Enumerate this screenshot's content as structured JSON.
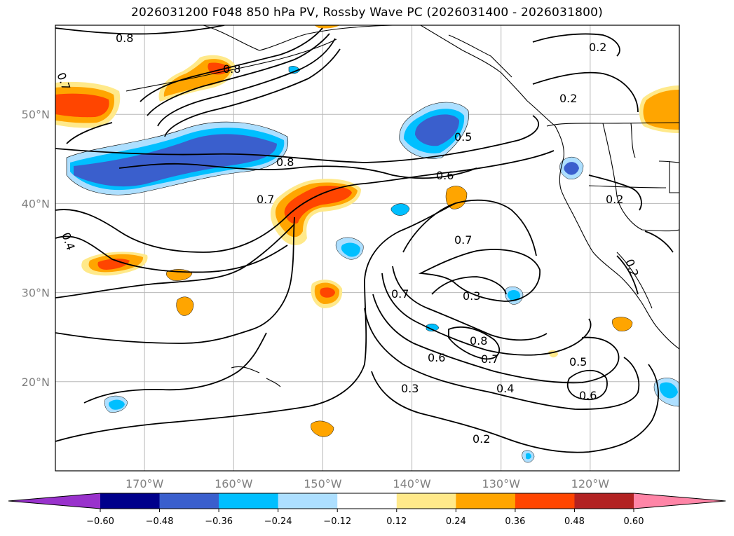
{
  "title": "2026031200 F048 850 hPa PV, Rossby Wave PC (2026031400 - 2026031800)",
  "map": {
    "lon_range": [
      -180,
      -110
    ],
    "lat_range": [
      10,
      60
    ],
    "lat_ticks": [
      {
        "value": 20,
        "label": "20°N"
      },
      {
        "value": 30,
        "label": "30°N"
      },
      {
        "value": 40,
        "label": "40°N"
      },
      {
        "value": 50,
        "label": "50°N"
      }
    ],
    "lon_ticks": [
      {
        "value": -170,
        "label": "170°W"
      },
      {
        "value": -160,
        "label": "160°W"
      },
      {
        "value": -150,
        "label": "150°W"
      },
      {
        "value": -140,
        "label": "140°W"
      },
      {
        "value": -130,
        "label": "130°W"
      },
      {
        "value": -120,
        "label": "120°W"
      }
    ],
    "gridlines": true,
    "contour_labels": [
      "0.8",
      "0.8",
      "0.7",
      "0.2",
      "0.2",
      "0.5",
      "0.8",
      "0.6",
      "0.7",
      "0.4",
      "0.2",
      "0.7",
      "0.7",
      "0.3",
      "0.8",
      "0.7",
      "0.6",
      "0.5",
      "0.6",
      "0.3",
      "0.4",
      "0.2",
      "0.2"
    ]
  },
  "colorbar": {
    "ticks": [
      "−0.60",
      "−0.48",
      "−0.36",
      "−0.24",
      "−0.12",
      "0.12",
      "0.24",
      "0.36",
      "0.48",
      "0.60"
    ],
    "colors": [
      "#9932CC",
      "#00008B",
      "#3A5FCD",
      "#00BFFF",
      "#ADDFFF",
      "#FFFFFF",
      "#FFE98A",
      "#FFA500",
      "#FF4500",
      "#B22222",
      "#FF85A7"
    ],
    "extend": "both"
  }
}
